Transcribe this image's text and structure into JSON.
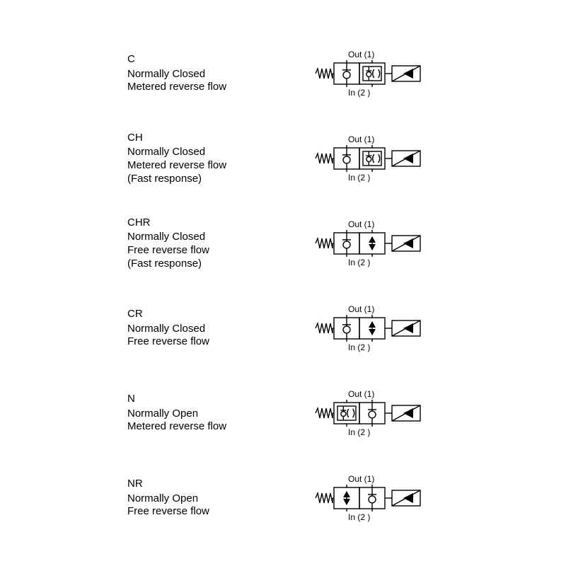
{
  "page": {
    "background": "#ffffff",
    "text_color": "#000000",
    "stroke_color": "#000000",
    "font_family": "Arial, Helvetica, sans-serif",
    "label_fontsize": 15,
    "port_label_fontsize": 12,
    "symbol_width_svg": 210,
    "symbol_height_svg": 80,
    "stroke_width": 1.4
  },
  "labels": {
    "out": "Out (1)",
    "in": "In (2 )"
  },
  "variants": [
    {
      "code": "C",
      "lines": [
        "Normally Closed",
        "Metered reverse flow"
      ],
      "left_cell": "poppet_up",
      "right_cell": "metered_poppet",
      "solenoid": "standard"
    },
    {
      "code": "CH",
      "lines": [
        "Normally Closed",
        "Metered reverse flow",
        "(Fast response)"
      ],
      "left_cell": "poppet_up",
      "right_cell": "metered_poppet",
      "solenoid": "fast"
    },
    {
      "code": "CHR",
      "lines": [
        "Normally Closed",
        "Free reverse flow",
        "(Fast response)"
      ],
      "left_cell": "poppet_up",
      "right_cell": "free_flow",
      "solenoid": "fast"
    },
    {
      "code": "CR",
      "lines": [
        "Normally Closed",
        "Free reverse flow"
      ],
      "left_cell": "poppet_up",
      "right_cell": "free_flow",
      "solenoid": "standard"
    },
    {
      "code": "N",
      "lines": [
        "Normally Open",
        "Metered reverse flow"
      ],
      "left_cell": "metered_poppet",
      "right_cell": "poppet_up",
      "solenoid": "standard"
    },
    {
      "code": "NR",
      "lines": [
        "Normally Open",
        "Free reverse flow"
      ],
      "left_cell": "free_flow",
      "right_cell": "poppet_up",
      "solenoid": "standard"
    }
  ]
}
